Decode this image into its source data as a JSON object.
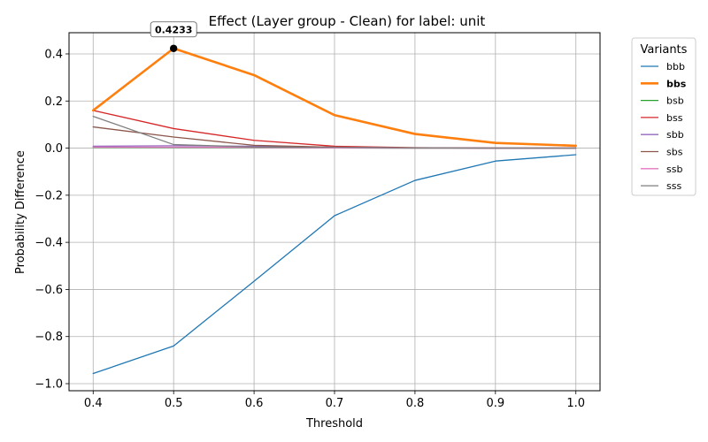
{
  "chart_data": {
    "type": "line",
    "title": "Effect (Layer group - Clean) for label: unit",
    "xlabel": "Threshold",
    "ylabel": "Probability Difference",
    "xlim": [
      0.37,
      1.03
    ],
    "ylim": [
      -1.03,
      0.49
    ],
    "x_ticks": [
      "0.4",
      "0.5",
      "0.6",
      "0.7",
      "0.8",
      "0.9",
      "1.0"
    ],
    "y_ticks": [
      "0.4",
      "0.2",
      "0.0",
      "−0.2",
      "−0.4",
      "−0.6",
      "−0.8",
      "−1.0"
    ],
    "grid": true,
    "legend": {
      "title": "Variants",
      "placement": "outside-right",
      "highlighted": "bbs"
    },
    "x": [
      0.4,
      0.5,
      0.6,
      0.7,
      0.8,
      0.9,
      1.0
    ],
    "series": [
      {
        "name": "bbb",
        "color": "#1f77b4",
        "values": [
          -0.957,
          -0.84,
          -0.565,
          -0.287,
          -0.137,
          -0.055,
          -0.028
        ]
      },
      {
        "name": "bbs",
        "color": "#ff7f0e",
        "values": [
          0.16,
          0.4233,
          0.31,
          0.14,
          0.06,
          0.022,
          0.01
        ]
      },
      {
        "name": "bsb",
        "color": "#2ca02c",
        "values": [
          0.003,
          0.003,
          0.002,
          0.001,
          0.0,
          0.0,
          0.0
        ]
      },
      {
        "name": "bss",
        "color": "#d62728",
        "values": [
          0.16,
          0.083,
          0.033,
          0.008,
          0.002,
          0.0,
          0.0
        ]
      },
      {
        "name": "sbb",
        "color": "#9467bd",
        "values": [
          0.008,
          0.01,
          0.008,
          0.004,
          0.001,
          0.0,
          0.0
        ]
      },
      {
        "name": "sbs",
        "color": "#8c564b",
        "values": [
          0.09,
          0.047,
          0.012,
          0.004,
          0.001,
          0.0,
          0.0
        ]
      },
      {
        "name": "ssb",
        "color": "#e377c2",
        "values": [
          0.004,
          0.004,
          0.003,
          0.001,
          0.0,
          0.0,
          0.0
        ]
      },
      {
        "name": "sss",
        "color": "#7f7f7f",
        "values": [
          0.135,
          0.015,
          0.005,
          0.003,
          0.001,
          0.0,
          0.0
        ]
      }
    ],
    "annotation": {
      "text": "0.4233",
      "x": 0.5,
      "y": 0.4233,
      "series": "bbs"
    }
  }
}
